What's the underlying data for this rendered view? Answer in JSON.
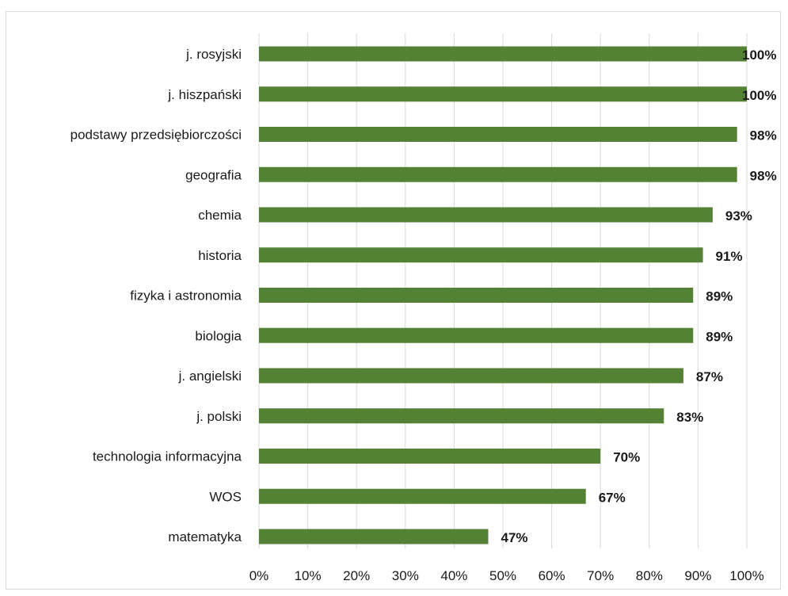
{
  "chart_data": {
    "type": "bar",
    "orientation": "horizontal",
    "categories": [
      "j. rosyjski",
      "j. hiszpański",
      "podstawy przedsiębiorczości",
      "geografia",
      "chemia",
      "historia",
      "fizyka i astronomia",
      "biologia",
      "j. angielski",
      "j. polski",
      "technologia informacyjna",
      "WOS",
      "matematyka"
    ],
    "values": [
      100,
      100,
      98,
      98,
      93,
      91,
      89,
      89,
      87,
      83,
      70,
      67,
      47
    ],
    "data_labels": [
      "100%",
      "100%",
      "98%",
      "98%",
      "93%",
      "91%",
      "89%",
      "89%",
      "87%",
      "83%",
      "70%",
      "67%",
      "47%"
    ],
    "x_ticks": [
      "0%",
      "10%",
      "20%",
      "30%",
      "40%",
      "50%",
      "60%",
      "70%",
      "80%",
      "90%",
      "100%"
    ],
    "xlim": [
      0,
      100
    ],
    "grid": "vertical",
    "bar_color": "#548235"
  }
}
